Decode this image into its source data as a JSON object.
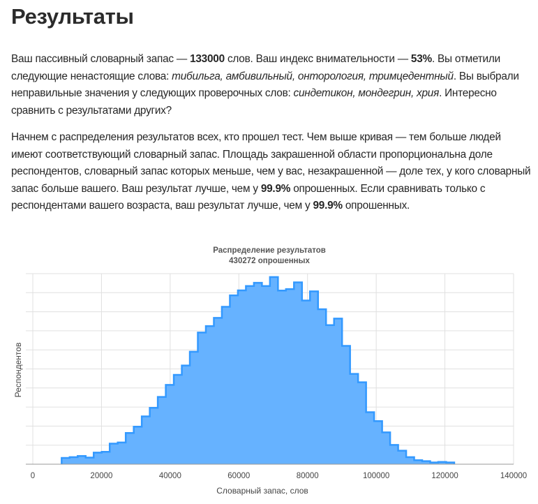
{
  "page": {
    "title": "Результаты",
    "paragraph1": [
      {
        "t": "Ваш пассивный словарный запас — ",
        "s": "n"
      },
      {
        "t": "133000",
        "s": "b"
      },
      {
        "t": " слов. Ваш индекс внимательности — ",
        "s": "n"
      },
      {
        "t": "53%",
        "s": "b"
      },
      {
        "t": ". Вы отметили следующие ненастоящие слова: ",
        "s": "n"
      },
      {
        "t": "тибильга, амбивильный, онторология, тримцедентный",
        "s": "i"
      },
      {
        "t": ". Вы выбрали неправильные значения у следующих проверочных слов: ",
        "s": "n"
      },
      {
        "t": "синдетикон, мондегрин, хрия",
        "s": "i"
      },
      {
        "t": ". Интересно сравнить с результатами других?",
        "s": "n"
      }
    ],
    "paragraph2": [
      {
        "t": "Начнем с распределения результатов всех, кто прошел тест. Чем выше кривая — тем больше людей имеют соответствующий словарный запас. Площадь закрашенной области пропорциональна доле респондентов, словарный запас которых меньше, чем у вас, незакрашенной — доле тех, у кого словарный запас больше вашего. Ваш результат лучше, чем у ",
        "s": "n"
      },
      {
        "t": "99.9%",
        "s": "b"
      },
      {
        "t": " опрошенных. Если сравнивать только с респондентами вашего возраста, ваш результат лучше, чем у ",
        "s": "n"
      },
      {
        "t": "99.9%",
        "s": "b"
      },
      {
        "t": " опрошенных.",
        "s": "n"
      }
    ]
  },
  "chart_data": {
    "type": "area",
    "title": "Распределение результатов",
    "subtitle": "430272 опрошенных",
    "xlabel": "Словарный запас, слов",
    "ylabel": "Респондентов",
    "xlim": [
      0,
      140000
    ],
    "xticks": [
      0,
      20000,
      40000,
      60000,
      80000,
      100000,
      120000,
      140000
    ],
    "ylim": [
      0,
      100
    ],
    "y_unit_note_visible": false,
    "grid": true,
    "legend": "none",
    "step": true,
    "fill_color": "#66b2ff",
    "line_color": "#3399ff",
    "bin_start": 8400,
    "bin_width": 2333,
    "values": [
      3.3,
      3.7,
      4.3,
      3.5,
      6.1,
      6.5,
      10.8,
      11.4,
      16.4,
      19.7,
      25.1,
      29.6,
      35.3,
      41.6,
      46.9,
      51.8,
      59.0,
      69.1,
      72.5,
      76.8,
      82.6,
      88.6,
      91.2,
      93.5,
      95.2,
      93.5,
      98.2,
      91.1,
      91.9,
      95.4,
      85.9,
      90.7,
      81.3,
      73.0,
      76.4,
      62.1,
      47.4,
      43.0,
      27.3,
      22.6,
      16.7,
      10.1,
      7.1,
      3.7,
      2.1,
      1.6,
      0.9,
      1.2,
      0.9
    ]
  }
}
